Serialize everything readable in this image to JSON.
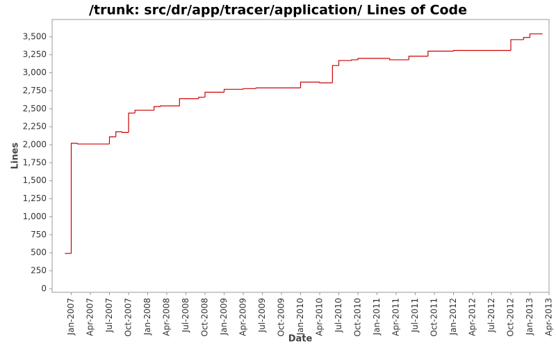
{
  "chart_data": {
    "type": "line",
    "title": "/trunk: src/dr/app/tracer/application/ Lines of Code",
    "x_label": "Date",
    "y_label": "Lines",
    "step": true,
    "series": [
      {
        "name": "Lines",
        "color": "#cc0000",
        "x": [
          "2006-12",
          "2007-01",
          "2007-02",
          "2007-07",
          "2007-08",
          "2007-09",
          "2007-10",
          "2007-11",
          "2008-02",
          "2008-03",
          "2008-06",
          "2008-09",
          "2008-10",
          "2009-01",
          "2009-04",
          "2009-06",
          "2010-01",
          "2010-04",
          "2010-06",
          "2010-07",
          "2010-09",
          "2010-10",
          "2011-03",
          "2011-06",
          "2011-09",
          "2012-01",
          "2012-10",
          "2012-12",
          "2013-01",
          "2013-03"
        ],
        "values": [
          490,
          2020,
          2010,
          2110,
          2180,
          2170,
          2440,
          2480,
          2530,
          2540,
          2640,
          2660,
          2730,
          2770,
          2780,
          2790,
          2870,
          2860,
          3100,
          3170,
          3180,
          3200,
          3180,
          3230,
          3300,
          3310,
          3460,
          3490,
          3540,
          3540
        ]
      }
    ],
    "xlim": [
      "2006-10",
      "2013-04"
    ],
    "xticks": [
      {
        "value": "2007-01",
        "label": "Jan-2007"
      },
      {
        "value": "2007-04",
        "label": "Apr-2007"
      },
      {
        "value": "2007-07",
        "label": "Jul-2007"
      },
      {
        "value": "2007-10",
        "label": "Oct-2007"
      },
      {
        "value": "2008-01",
        "label": "Jan-2008"
      },
      {
        "value": "2008-04",
        "label": "Apr-2008"
      },
      {
        "value": "2008-07",
        "label": "Jul-2008"
      },
      {
        "value": "2008-10",
        "label": "Oct-2008"
      },
      {
        "value": "2009-01",
        "label": "Jan-2009"
      },
      {
        "value": "2009-04",
        "label": "Apr-2009"
      },
      {
        "value": "2009-07",
        "label": "Jul-2009"
      },
      {
        "value": "2009-10",
        "label": "Oct-2009"
      },
      {
        "value": "2010-01",
        "label": "Jan-2010"
      },
      {
        "value": "2010-04",
        "label": "Apr-2010"
      },
      {
        "value": "2010-07",
        "label": "Jul-2010"
      },
      {
        "value": "2010-10",
        "label": "Oct-2010"
      },
      {
        "value": "2011-01",
        "label": "Jan-2011"
      },
      {
        "value": "2011-04",
        "label": "Apr-2011"
      },
      {
        "value": "2011-07",
        "label": "Jul-2011"
      },
      {
        "value": "2011-10",
        "label": "Oct-2011"
      },
      {
        "value": "2012-01",
        "label": "Jan-2012"
      },
      {
        "value": "2012-04",
        "label": "Apr-2012"
      },
      {
        "value": "2012-07",
        "label": "Jul-2012"
      },
      {
        "value": "2012-10",
        "label": "Oct-2012"
      },
      {
        "value": "2013-01",
        "label": "Jan-2013"
      },
      {
        "value": "2013-04",
        "label": "Apr-2013"
      }
    ],
    "ylim": [
      -50,
      3740
    ],
    "yticks": [
      0,
      {
        "value": 250,
        "label": "250"
      },
      {
        "value": 500,
        "label": "500"
      },
      {
        "value": 750,
        "label": "750"
      },
      {
        "value": 1000,
        "label": "1,000"
      },
      {
        "value": 1250,
        "label": "1,250"
      },
      {
        "value": 1500,
        "label": "1,500"
      },
      {
        "value": 1750,
        "label": "1,750"
      },
      {
        "value": 2000,
        "label": "2,000"
      },
      {
        "value": 2250,
        "label": "2,250"
      },
      {
        "value": 2500,
        "label": "2,500"
      },
      {
        "value": 2750,
        "label": "2,750"
      },
      {
        "value": 3000,
        "label": "3,000"
      },
      {
        "value": 3250,
        "label": "3,250"
      },
      {
        "value": 3500,
        "label": "3,500"
      }
    ]
  }
}
